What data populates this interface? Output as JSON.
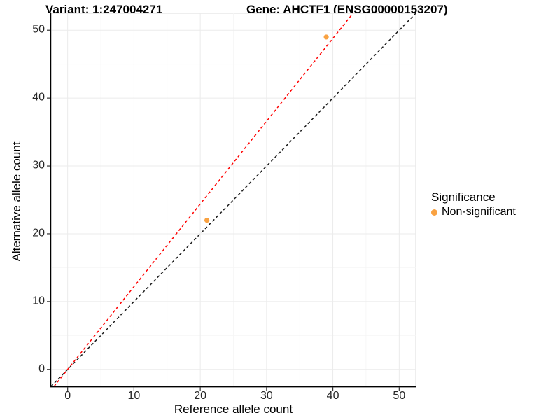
{
  "chart_data": {
    "type": "scatter",
    "title_left": "Variant: 1:247004271",
    "title_right": "Gene: AHCTF1 (ENSG00000153207)",
    "xlabel": "Reference allele count",
    "ylabel": "Alternative allele count",
    "xlim": [
      -2.5,
      52.5
    ],
    "ylim": [
      -2.5,
      52.5
    ],
    "x_ticks": [
      0,
      10,
      20,
      30,
      40,
      50
    ],
    "y_ticks": [
      0,
      10,
      20,
      30,
      40,
      50
    ],
    "x_minor_ticks": [
      5,
      15,
      25,
      35,
      45
    ],
    "y_minor_ticks": [
      5,
      15,
      25,
      35,
      45
    ],
    "grid": true,
    "points": [
      {
        "ref": 39,
        "alt": 49,
        "significance": "Non-significant"
      },
      {
        "ref": 21,
        "alt": 22,
        "significance": "Non-significant"
      }
    ],
    "lines": [
      {
        "name": "identity",
        "slope": 1,
        "intercept": 0,
        "style": "dashed",
        "color": "#1a1a1a"
      },
      {
        "name": "expected-ratio",
        "slope": 1.22,
        "intercept": 0,
        "style": "dashed",
        "color": "#ff0000"
      }
    ],
    "legend": {
      "title": "Significance",
      "position": "right",
      "items": [
        {
          "label": "Non-significant",
          "color": "#f9a242"
        }
      ]
    },
    "colors": {
      "point_fill": "#f9a242",
      "grid_major": "#ebebeb",
      "grid_minor": "#f5f5f5",
      "panel_border": "#dcdcdc",
      "panel_background": "#ffffff",
      "axis_line": "#000000",
      "tick_mark": "#333333"
    }
  }
}
